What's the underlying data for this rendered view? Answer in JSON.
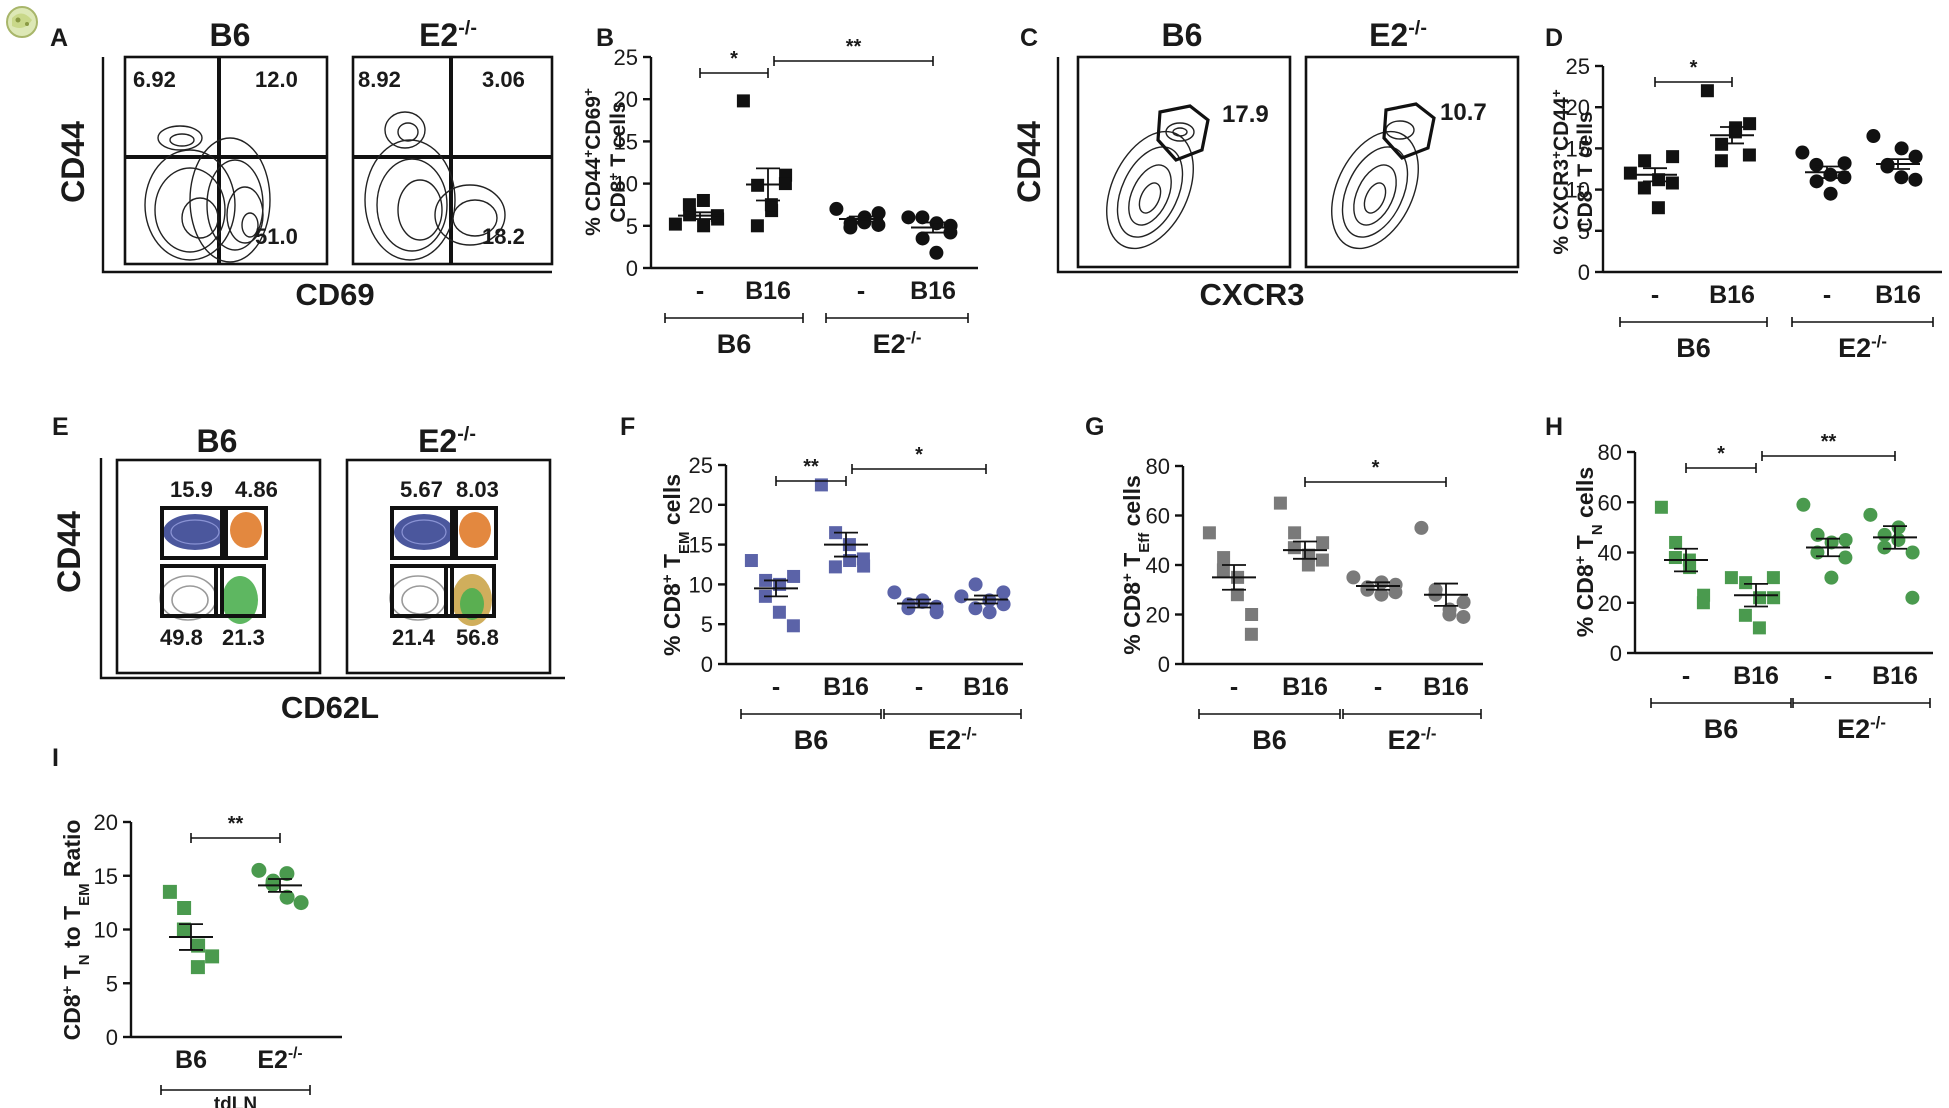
{
  "panels": {
    "A": {
      "letter": "A",
      "groups": [
        "B6",
        "E2-/-"
      ],
      "ylabel": "CD44",
      "xlabel": "CD69",
      "b6_quadrants": [
        "6.92",
        "12.0",
        "51.0"
      ],
      "e2_quadrants": [
        "8.92",
        "3.06",
        "18.2"
      ]
    },
    "B": {
      "letter": "B",
      "signif": [
        "*",
        "**"
      ]
    },
    "C": {
      "letter": "C",
      "groups": [
        "B6",
        "E2-/-"
      ],
      "ylabel": "CD44",
      "xlabel": "CXCR3",
      "b6_gate": "17.9",
      "e2_gate": "10.7"
    },
    "D": {
      "letter": "D",
      "signif": [
        "*"
      ]
    },
    "E": {
      "letter": "E",
      "groups": [
        "B6",
        "E2-/-"
      ],
      "ylabel": "CD44",
      "xlabel": "CD62L",
      "b6_gates": [
        "15.9",
        "4.86",
        "49.8",
        "21.3"
      ],
      "e2_gates": [
        "5.67",
        "8.03",
        "21.4",
        "56.8"
      ]
    },
    "F": {
      "letter": "F",
      "signif": [
        "**",
        "*"
      ]
    },
    "G": {
      "letter": "G",
      "signif": [
        "*"
      ]
    },
    "H": {
      "letter": "H",
      "signif": [
        "*",
        "**"
      ]
    },
    "I": {
      "letter": "I",
      "signif": [
        "**"
      ]
    }
  },
  "colors": {
    "black": "#111111",
    "blue": "#5b63a8",
    "gray": "#7a7a7a",
    "green": "#4a9a4e",
    "gate_naive": "#a0a0a0",
    "gate_em": "#2b3a8c",
    "gate_cm": "#e07b2a",
    "gate_eff": "#4caf50"
  },
  "chart_data": [
    {
      "panel": "B",
      "type": "scatter",
      "color": "black",
      "ylabel": "% CD44+CD69+ CD8+ T cells",
      "ylim": [
        0,
        25
      ],
      "yticks": [
        0,
        5,
        10,
        15,
        20,
        25
      ],
      "categories": [
        "-",
        "B16",
        "-",
        "B16"
      ],
      "group_labels": [
        "B6",
        "E2-/-"
      ],
      "markers": [
        "square",
        "square",
        "circle",
        "circle"
      ],
      "points": [
        [
          5.2,
          6.3,
          7.5,
          5.0,
          8.0,
          5.8,
          6.2
        ],
        [
          19.8,
          9.8,
          5.0,
          6.8,
          7.5,
          11.0,
          10.0
        ],
        [
          7.0,
          5.3,
          4.8,
          6.0,
          5.4,
          6.5,
          5.1
        ],
        [
          6.0,
          3.5,
          6.0,
          5.3,
          1.8,
          5.0,
          4.2
        ]
      ],
      "means": [
        6.2,
        9.9,
        5.8,
        4.8
      ],
      "sems": [
        0.4,
        1.9,
        0.3,
        0.6
      ],
      "brackets": [
        {
          "from": 0,
          "to": 1,
          "label": "*"
        },
        {
          "from": 1,
          "to": 3,
          "label": "**"
        }
      ]
    },
    {
      "panel": "D",
      "type": "scatter",
      "color": "black",
      "ylabel": "% CXCR3+CD44+ CD8+ T cells",
      "ylim": [
        0,
        25
      ],
      "yticks": [
        0,
        5,
        10,
        15,
        20,
        25
      ],
      "categories": [
        "-",
        "B16",
        "-",
        "B16"
      ],
      "group_labels": [
        "B6",
        "E2-/-"
      ],
      "markers": [
        "square",
        "square",
        "circle",
        "circle"
      ],
      "points": [
        [
          12.0,
          13.5,
          10.2,
          11.2,
          7.8,
          14.0,
          10.8
        ],
        [
          22.0,
          15.5,
          13.5,
          17.5,
          17.0,
          18.0,
          14.2
        ],
        [
          14.5,
          11.0,
          13.0,
          9.5,
          11.8,
          13.2,
          11.5
        ],
        [
          16.5,
          13.0,
          12.8,
          15.0,
          11.5,
          14.0,
          11.2
        ]
      ],
      "means": [
        11.8,
        16.6,
        12.1,
        13.1
      ],
      "sems": [
        0.8,
        1.0,
        0.7,
        0.6
      ],
      "brackets": [
        {
          "from": 0,
          "to": 1,
          "label": "*"
        }
      ]
    },
    {
      "panel": "F",
      "type": "scatter",
      "color": "blue",
      "ylabel": "% CD8+ TEM cells",
      "ylim": [
        0,
        25
      ],
      "yticks": [
        0,
        5,
        10,
        15,
        20,
        25
      ],
      "categories": [
        "-",
        "B16",
        "-",
        "B16"
      ],
      "group_labels": [
        "B6",
        "E2-/-"
      ],
      "markers": [
        "square",
        "square",
        "circle",
        "circle"
      ],
      "points": [
        [
          13.0,
          10.5,
          8.5,
          10.0,
          6.5,
          11.0,
          4.8
        ],
        [
          22.5,
          16.5,
          12.2,
          13.0,
          15.0,
          12.3,
          13.2
        ],
        [
          9.0,
          7.5,
          7.0,
          8.0,
          7.8,
          6.5,
          7.2
        ],
        [
          8.5,
          10.0,
          7.0,
          6.5,
          8.0,
          7.5,
          9.0
        ]
      ],
      "means": [
        9.5,
        15.0,
        7.6,
        8.1
      ],
      "sems": [
        1.0,
        1.5,
        0.5,
        0.5
      ],
      "brackets": [
        {
          "from": 1,
          "to": 0,
          "label": "**"
        },
        {
          "from": 1,
          "to": 3,
          "label": "*"
        }
      ]
    },
    {
      "panel": "G",
      "type": "scatter",
      "color": "gray",
      "ylabel": "% CD8+ TEff cells",
      "ylim": [
        0,
        80
      ],
      "yticks": [
        0,
        20,
        40,
        60,
        80
      ],
      "categories": [
        "-",
        "B16",
        "-",
        "B16"
      ],
      "group_labels": [
        "B6",
        "E2-/-"
      ],
      "markers": [
        "square",
        "square",
        "circle",
        "circle"
      ],
      "points": [
        [
          53.0,
          43.0,
          38.0,
          35.0,
          28.0,
          20.0,
          12.0
        ],
        [
          65.0,
          53.0,
          47.0,
          44.0,
          40.0,
          49.0,
          42.0
        ],
        [
          35.0,
          31.0,
          30.0,
          33.0,
          28.0,
          32.0,
          29.0
        ],
        [
          55.0,
          30.0,
          28.0,
          22.0,
          20.0,
          25.0,
          19.0
        ]
      ],
      "means": [
        35.0,
        46.0,
        31.5,
        28.0
      ],
      "sems": [
        5.0,
        3.5,
        1.5,
        4.5
      ],
      "brackets": [
        {
          "from": 1,
          "to": 3,
          "label": "*"
        }
      ]
    },
    {
      "panel": "H",
      "type": "scatter",
      "color": "green",
      "ylabel": "% CD8+ TN cells",
      "ylim": [
        0,
        80
      ],
      "yticks": [
        0,
        20,
        40,
        60,
        80
      ],
      "categories": [
        "-",
        "B16",
        "-",
        "B16"
      ],
      "group_labels": [
        "B6",
        "E2-/-"
      ],
      "markers": [
        "square",
        "square",
        "circle",
        "circle"
      ],
      "points": [
        [
          58.0,
          44.0,
          38.0,
          34.0,
          37.0,
          23.0,
          20.0
        ],
        [
          30.0,
          28.0,
          15.0,
          22.0,
          10.0,
          22.0,
          30.0
        ],
        [
          59.0,
          47.0,
          40.0,
          44.0,
          30.0,
          45.0,
          38.0
        ],
        [
          55.0,
          47.0,
          42.0,
          50.0,
          45.0,
          40.0,
          22.0
        ]
      ],
      "means": [
        37.0,
        23.0,
        42.0,
        46.0
      ],
      "sems": [
        4.5,
        4.5,
        3.5,
        4.5
      ],
      "brackets": [
        {
          "from": 0,
          "to": 1,
          "label": "*"
        },
        {
          "from": 1,
          "to": 3,
          "label": "**"
        }
      ]
    },
    {
      "panel": "I",
      "type": "scatter",
      "color": "green",
      "ylabel": "CD8+ TN to TEM Ratio",
      "ylim": [
        0,
        20
      ],
      "yticks": [
        0,
        5,
        10,
        15,
        20
      ],
      "categories": [
        "B6",
        "E2-/-"
      ],
      "axis_title": "tdLN",
      "markers": [
        "square",
        "circle"
      ],
      "points": [
        [
          13.5,
          12.0,
          10.0,
          8.5,
          6.5,
          7.5
        ],
        [
          15.5,
          14.5,
          14.2,
          13.0,
          15.2,
          12.5
        ]
      ],
      "means": [
        9.3,
        14.1
      ],
      "sems": [
        1.2,
        0.6
      ],
      "brackets": [
        {
          "from": 0,
          "to": 1,
          "label": "**"
        }
      ]
    }
  ]
}
